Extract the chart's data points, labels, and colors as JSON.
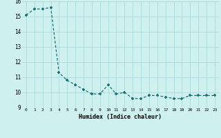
{
  "x": [
    0,
    1,
    2,
    3,
    4,
    5,
    6,
    7,
    8,
    9,
    10,
    11,
    12,
    13,
    14,
    15,
    16,
    17,
    18,
    19,
    20,
    21,
    22,
    23
  ],
  "y": [
    15.1,
    15.5,
    15.5,
    15.6,
    11.3,
    10.8,
    10.5,
    10.2,
    9.9,
    9.9,
    10.5,
    9.9,
    10.0,
    9.6,
    9.6,
    9.8,
    9.8,
    9.7,
    9.6,
    9.6,
    9.8,
    9.8,
    9.8,
    9.8
  ],
  "xlabel": "Humidex (Indice chaleur)",
  "xlim": [
    -0.5,
    23.5
  ],
  "ylim": [
    9,
    16
  ],
  "yticks": [
    9,
    10,
    11,
    12,
    13,
    14,
    15,
    16
  ],
  "xticks": [
    0,
    1,
    2,
    3,
    4,
    5,
    6,
    7,
    8,
    9,
    10,
    11,
    12,
    13,
    14,
    15,
    16,
    17,
    18,
    19,
    20,
    21,
    22,
    23
  ],
  "line_color": "#1a7070",
  "marker_color": "#1a7070",
  "bg_color": "#cef0ee",
  "grid_color": "#aadada",
  "font_color": "#000000"
}
